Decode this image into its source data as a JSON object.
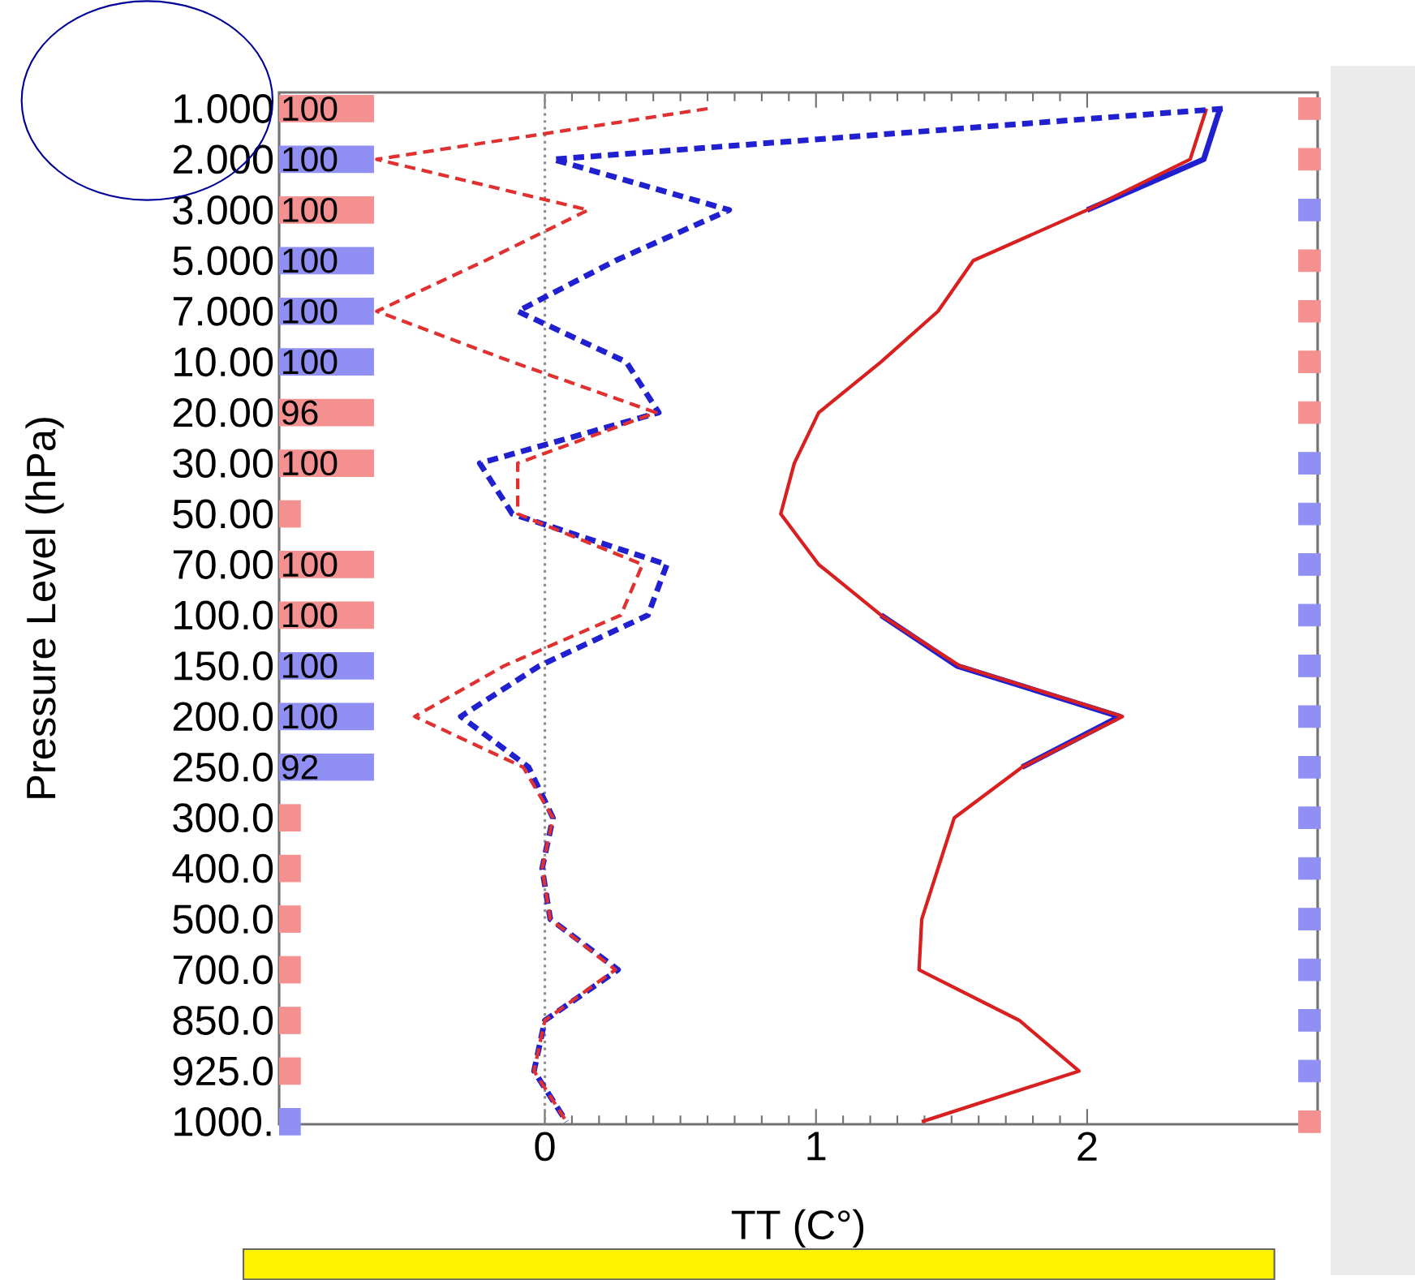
{
  "chart_data": {
    "type": "line",
    "orientation": "horizontal",
    "xlabel": "TT (C°)",
    "ylabel": "Pressure Level (hPa)",
    "categories": [
      "1.000",
      "2.000",
      "3.000",
      "5.000",
      "7.000",
      "10.00",
      "20.00",
      "30.00",
      "50.00",
      "70.00",
      "100.0",
      "150.0",
      "200.0",
      "250.0",
      "300.0",
      "400.0",
      "500.0",
      "700.0",
      "850.0",
      "925.0",
      "1000."
    ],
    "xlim": [
      -0.98,
      2.85
    ],
    "xticks": [
      0,
      1,
      2
    ],
    "annotations": [
      "100",
      "100",
      "100",
      "100",
      "100",
      "100",
      "96",
      "100",
      "100",
      "100",
      "100",
      "100",
      "92"
    ],
    "ref_lines": [
      {
        "axis": "x",
        "value": 0,
        "color": "#909090",
        "line_style": "dotted"
      }
    ],
    "series": [
      {
        "type": "bar",
        "base": [
          -0.98,
          -0.98,
          -0.98,
          -0.98,
          -0.98,
          -0.98,
          -0.98,
          -0.98,
          -0.98,
          -0.98,
          -0.98,
          -0.98,
          -0.98,
          -0.98,
          -0.98,
          -0.98,
          -0.98,
          -0.98,
          -0.98,
          -0.98,
          -0.98
        ],
        "values": [
          0.35,
          0.35,
          0.35,
          0.35,
          0.35,
          0.35,
          0.35,
          0.35,
          0.08,
          0.35,
          0.35,
          0.35,
          0.35,
          0.35,
          0.08,
          0.08,
          0.08,
          0.08,
          0.08,
          0.08,
          0.08
        ],
        "colors": [
          "#f49090",
          "#9090f4",
          "#f49090",
          "#9090f4",
          "#9090f4",
          "#9090f4",
          "#f49090",
          "#f49090",
          "#f49090",
          "#f49090",
          "#f49090",
          "#9090f4",
          "#9090f4",
          "#9090f4",
          "#f49090",
          "#f49090",
          "#f49090",
          "#f49090",
          "#f49090",
          "#f49090",
          "#9090f4"
        ]
      },
      {
        "type": "scatter",
        "marker": "square",
        "values": [
          2.82,
          2.82,
          2.82,
          2.82,
          2.82,
          2.82,
          2.82,
          2.82,
          2.82,
          2.82,
          2.82,
          2.82,
          2.82,
          2.82,
          2.82,
          2.82,
          2.82,
          2.82,
          2.82,
          2.82,
          2.82
        ],
        "colors": [
          "#f49090",
          "#f49090",
          "#9090f4",
          "#f49090",
          "#f49090",
          "#f49090",
          "#f49090",
          "#9090f4",
          "#9090f4",
          "#9090f4",
          "#9090f4",
          "#9090f4",
          "#9090f4",
          "#9090f4",
          "#9090f4",
          "#9090f4",
          "#9090f4",
          "#9090f4",
          "#9090f4",
          "#9090f4",
          "#f49090"
        ]
      },
      {
        "color": "#2020d0",
        "line_style": "solid",
        "values": [
          2.49,
          2.43,
          2.0,
          null,
          null,
          null,
          null,
          null,
          null,
          null,
          1.24,
          1.52,
          2.12,
          1.76,
          null,
          null,
          null,
          null,
          null,
          null,
          null
        ]
      },
      {
        "color": "#d82020",
        "line_style": "solid",
        "values": [
          2.44,
          2.38,
          2.0,
          1.58,
          1.45,
          1.24,
          1.01,
          0.92,
          0.87,
          1.01,
          1.24,
          1.53,
          2.13,
          1.76,
          1.51,
          1.45,
          1.39,
          1.38,
          1.75,
          1.97,
          1.39
        ]
      },
      {
        "color": "#2020d0",
        "line_style": "dashed",
        "values": [
          2.5,
          0.03,
          0.68,
          0.26,
          -0.1,
          0.3,
          0.42,
          -0.24,
          -0.12,
          0.45,
          0.38,
          -0.02,
          -0.31,
          -0.06,
          0.03,
          -0.01,
          0.02,
          0.27,
          0.0,
          -0.04,
          0.08
        ]
      },
      {
        "color": "#e03030",
        "line_style": "dashed",
        "values": [
          0.6,
          -0.62,
          0.16,
          -0.22,
          -0.62,
          -0.12,
          0.41,
          -0.1,
          -0.1,
          0.36,
          0.28,
          -0.15,
          -0.48,
          -0.08,
          0.03,
          -0.01,
          0.02,
          0.26,
          0.0,
          -0.04,
          0.08
        ]
      }
    ]
  }
}
